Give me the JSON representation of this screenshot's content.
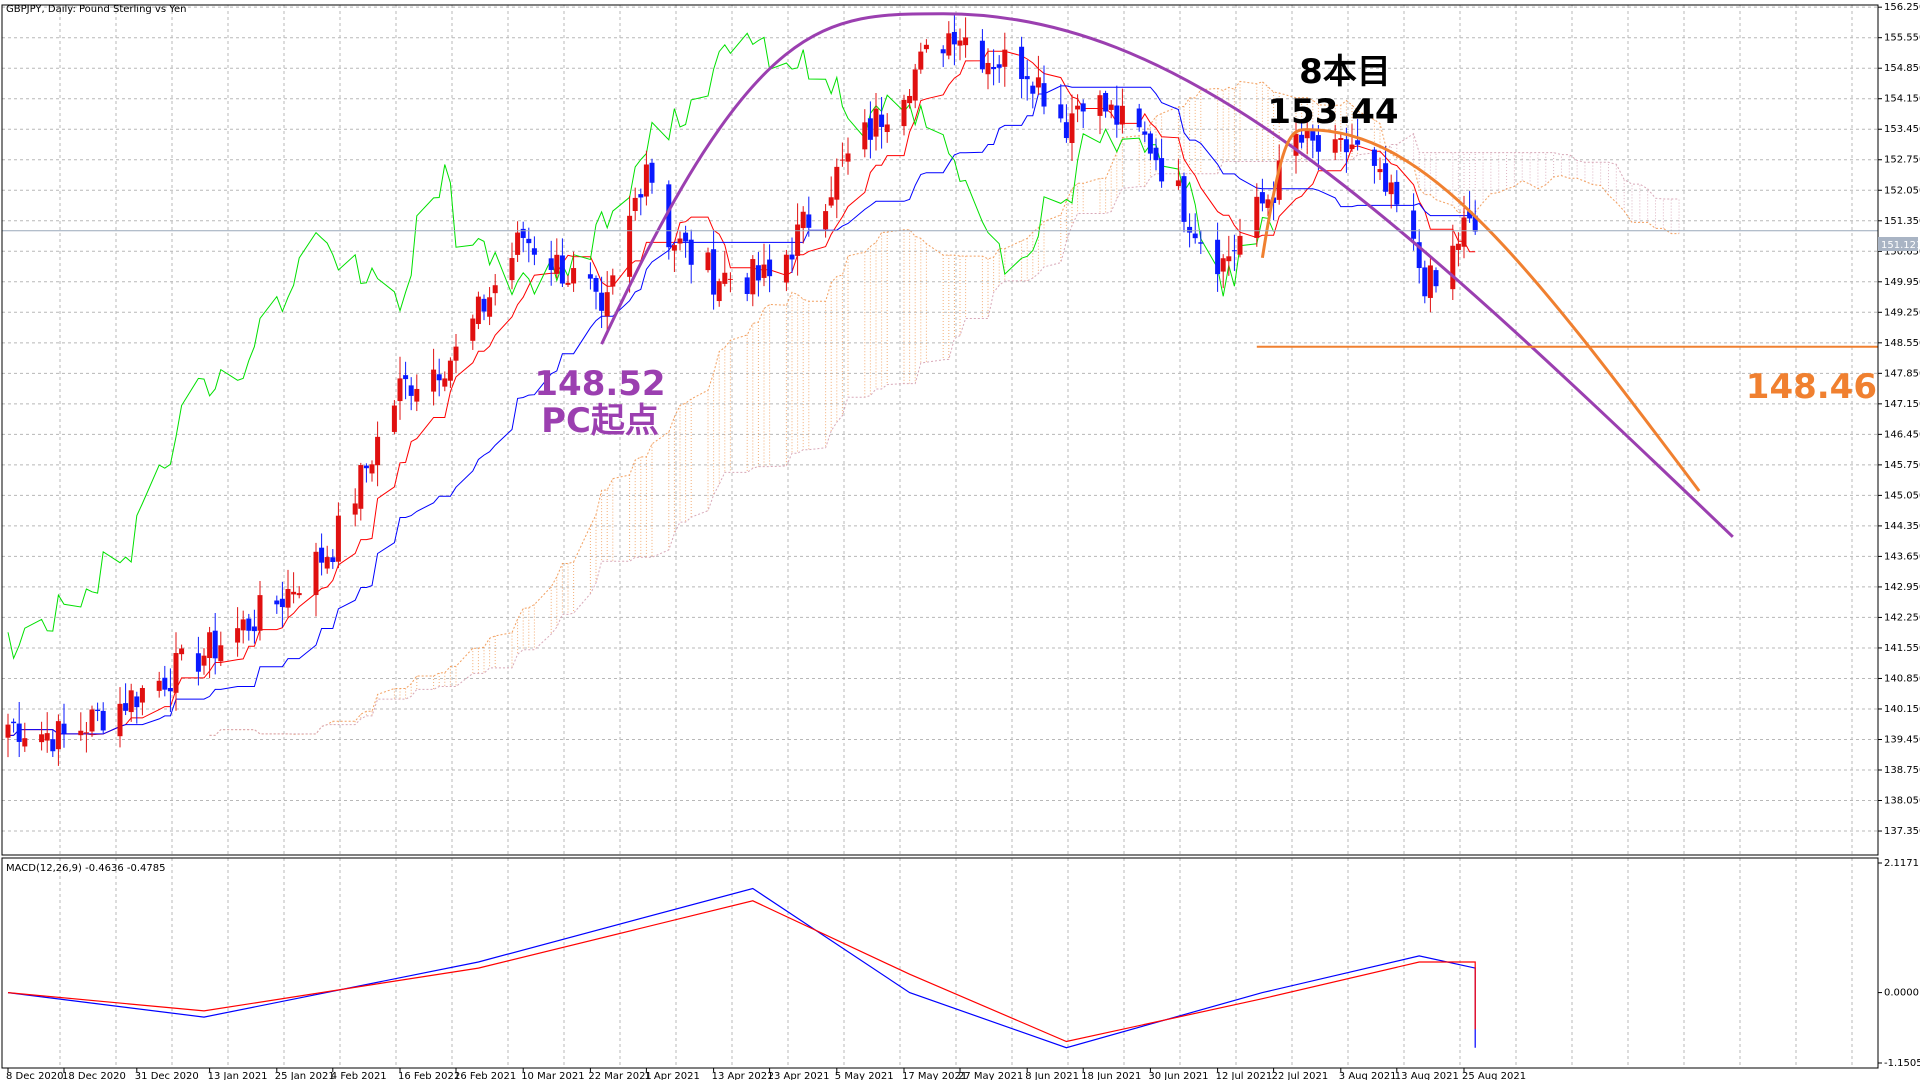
{
  "window": {
    "symbol_label": "GBPJPY, Daily:  Pound Sterling vs Yen",
    "macd_label": "MACD(12,26,9) -0.4636 -0.4785"
  },
  "colors": {
    "bull": "#e01010",
    "bear": "#0a1aff",
    "tenkan": "#ff0000",
    "kijun": "#0000ff",
    "chikou": "#00e000",
    "kumo": "#f2a060",
    "kumo2": "#d8a8b8",
    "grid": "#b8b8b8",
    "pc": "#9b3fb0",
    "orange": "#f08030",
    "macd_main": "#0000ff",
    "macd_signal": "#ff0000"
  },
  "annotations": {
    "candle8_title": "8本目",
    "candle8_price": "153.44",
    "pc_price": "148.52",
    "pc_label": "PC起点",
    "support_price": "148.46",
    "current_price": "151.121"
  },
  "chart_data": [
    {
      "type": "candlestick",
      "title": "GBPJPY, Daily:  Pound Sterling vs Yen",
      "ylim": [
        136.8,
        156.3
      ],
      "y_ticks": [
        "156.250",
        "155.550",
        "154.850",
        "154.150",
        "153.450",
        "152.750",
        "152.050",
        "151.350",
        "150.650",
        "149.950",
        "149.250",
        "148.550",
        "147.850",
        "147.150",
        "146.450",
        "145.750",
        "145.050",
        "144.350",
        "143.650",
        "142.950",
        "142.250",
        "141.550",
        "140.850",
        "140.150",
        "139.450",
        "138.750",
        "138.050",
        "137.350"
      ],
      "x_labels": [
        "8 Dec 2020",
        "18 Dec 2020",
        "31 Dec 2020",
        "13 Jan 2021",
        "25 Jan 2021",
        "4 Feb 2021",
        "16 Feb 2021",
        "26 Feb 2021",
        "10 Mar 2021",
        "22 Mar 2021",
        "1 Apr 2021",
        "13 Apr 2021",
        "23 Apr 2021",
        "5 May 2021",
        "17 May 2021",
        "27 May 2021",
        "8 Jun 2021",
        "18 Jun 2021",
        "30 Jun 2021",
        "12 Jul 2021",
        "22 Jul 2021",
        "3 Aug 2021",
        "13 Aug 2021",
        "25 Aug 2021"
      ],
      "anchors": [
        [
          "2020-12-08",
          139.8
        ],
        [
          "2020-12-18",
          139.5
        ],
        [
          "2021-01-13",
          141.5
        ],
        [
          "2021-01-25",
          142.6
        ],
        [
          "2021-02-04",
          143.9
        ],
        [
          "2021-02-16",
          147.5
        ],
        [
          "2021-02-26",
          148.3
        ],
        [
          "2021-03-10",
          151.0
        ],
        [
          "2021-03-22",
          149.7
        ],
        [
          "2021-03-24",
          148.9
        ],
        [
          "2021-04-01",
          152.8
        ],
        [
          "2021-04-05",
          151.0
        ],
        [
          "2021-04-13",
          150.1
        ],
        [
          "2021-04-23",
          150.0
        ],
        [
          "2021-05-05",
          152.4
        ],
        [
          "2021-05-17",
          154.5
        ],
        [
          "2021-05-26",
          155.8
        ],
        [
          "2021-06-01",
          155.1
        ],
        [
          "2021-06-08",
          154.9
        ],
        [
          "2021-06-15",
          153.6
        ],
        [
          "2021-06-18",
          154.3
        ],
        [
          "2021-06-30",
          153.1
        ],
        [
          "2021-07-09",
          151.0
        ],
        [
          "2021-07-13",
          150.4
        ],
        [
          "2021-07-22",
          152.1
        ],
        [
          "2021-07-26",
          153.2
        ],
        [
          "2021-08-02",
          152.8
        ],
        [
          "2021-08-05",
          153.1
        ],
        [
          "2021-08-13",
          151.6
        ],
        [
          "2021-08-18",
          150.0
        ],
        [
          "2021-08-20",
          149.8
        ],
        [
          "2021-08-25",
          151.2
        ],
        [
          "2021-08-27",
          151.1
        ]
      ],
      "current_price": 151.121,
      "pc_arc": {
        "start": [
          "2021-03-24",
          148.52
        ],
        "peak": [
          "2021-05-24",
          156.1
        ],
        "end": [
          "2021-10-12",
          144.1
        ]
      },
      "orange_arc": {
        "start": [
          "2021-07-20",
          150.5
        ],
        "peak": [
          "2021-07-28",
          153.44
        ],
        "end": [
          "2021-10-06",
          145.15
        ]
      },
      "support_line": {
        "value": 148.46,
        "from": "2021-07-19"
      }
    },
    {
      "type": "line",
      "title": "MACD(12,26,9) -0.4636 -0.4785",
      "ylim": [
        -1.1505,
        2.1171
      ],
      "y_ticks": [
        "2.1171",
        "0.0000",
        "-1.1505"
      ],
      "series": [
        {
          "name": "MACD",
          "values": [
            [
              0,
              0.0
            ],
            [
              25,
              -0.4
            ],
            [
              60,
              0.5
            ],
            [
              95,
              1.7
            ],
            [
              115,
              0.0
            ],
            [
              135,
              -0.9
            ],
            [
              160,
              0.0
            ],
            [
              180,
              0.6
            ],
            [
              200,
              0.4
            ],
            [
              225,
              -0.4
            ],
            [
              235,
              -0.9
            ],
            [
              250,
              0.0
            ],
            [
              255,
              -0.5
            ],
            [
              262,
              -0.47
            ]
          ]
        },
        {
          "name": "Signal",
          "values": [
            [
              0,
              0.0
            ],
            [
              25,
              -0.3
            ],
            [
              60,
              0.4
            ],
            [
              95,
              1.5
            ],
            [
              115,
              0.3
            ],
            [
              135,
              -0.8
            ],
            [
              160,
              -0.1
            ],
            [
              180,
              0.5
            ],
            [
              200,
              0.5
            ],
            [
              225,
              -0.2
            ],
            [
              235,
              -0.6
            ],
            [
              250,
              -0.3
            ],
            [
              255,
              -0.2
            ],
            [
              262,
              -0.48
            ]
          ]
        }
      ]
    }
  ]
}
